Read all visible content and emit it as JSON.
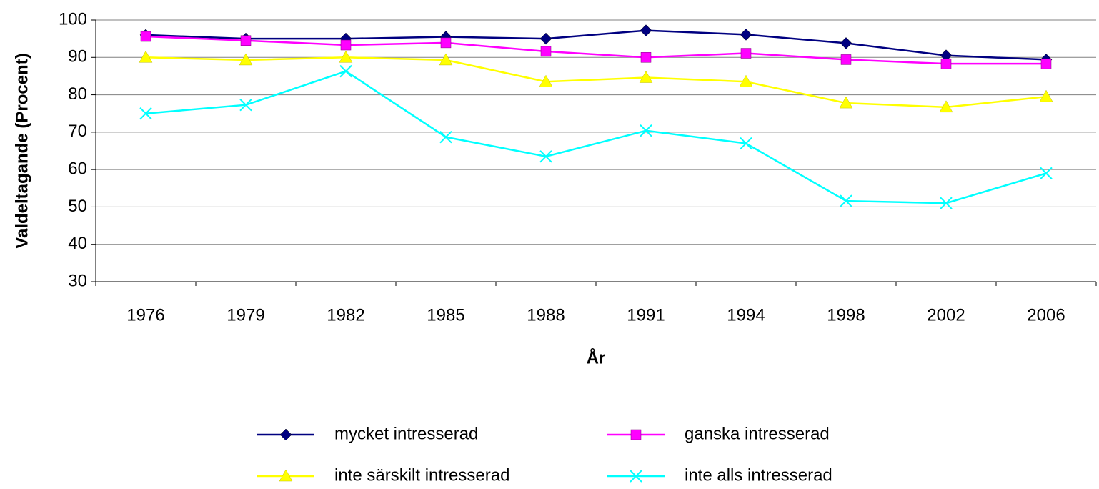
{
  "chart_data": {
    "type": "line",
    "y_label": "Valdeltagande (Procent)",
    "x_label": "År",
    "categories": [
      "1976",
      "1979",
      "1982",
      "1985",
      "1988",
      "1991",
      "1994",
      "1998",
      "2002",
      "2006"
    ],
    "series": [
      {
        "name": "mycket intresserad",
        "color": "#000080",
        "marker": "diamond",
        "values": [
          96,
          95,
          95,
          95.5,
          95,
          97.2,
          96.1,
          93.8,
          90.5,
          89.4
        ]
      },
      {
        "name": "ganska intresserad",
        "color": "#ff00ff",
        "marker": "square",
        "values": [
          95.6,
          94.5,
          93.3,
          93.9,
          91.6,
          90,
          91.1,
          89.4,
          88.3,
          88.3
        ]
      },
      {
        "name": "inte särskilt intresserad",
        "color": "#ffff00",
        "marker": "triangle",
        "values": [
          90,
          89.3,
          90,
          89.3,
          83.5,
          84.6,
          83.5,
          77.8,
          76.7,
          79.5
        ]
      },
      {
        "name": "inte alls intresserad",
        "color": "#00ffff",
        "marker": "x",
        "values": [
          75,
          77.3,
          86.3,
          68.7,
          63.5,
          70.4,
          67,
          51.6,
          51,
          59
        ]
      }
    ],
    "ylim": [
      30,
      100
    ],
    "yticks": [
      30,
      40,
      50,
      60,
      70,
      80,
      90,
      100
    ],
    "grid": true,
    "legend": "bottom"
  }
}
